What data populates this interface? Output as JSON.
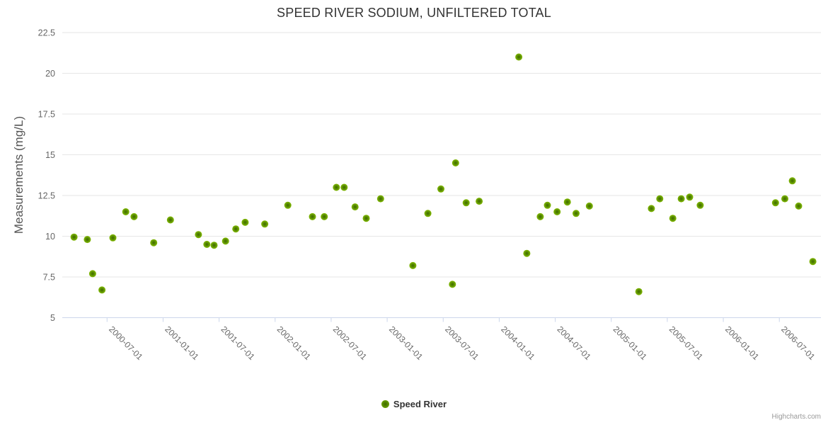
{
  "title": "SPEED RIVER SODIUM, UNFILTERED TOTAL",
  "credits_label": "Highcharts.com",
  "legend": {
    "series_label": "Speed River",
    "marker_icon": "green-dot-icon"
  },
  "colors": {
    "marker_outer": "#82ba00",
    "marker_mid": "#578a00",
    "marker_inner": "#3f6800",
    "grid": "#e6e6e6",
    "axis_line": "#ccd6eb",
    "tick_label": "#666666",
    "title_text": "#333333"
  },
  "chart_data": {
    "type": "scatter",
    "title": "SPEED RIVER SODIUM, UNFILTERED TOTAL",
    "xlabel": "",
    "ylabel": "Measurements (mg/L)",
    "ylim": [
      5,
      22.5
    ],
    "y_ticks": [
      "22.5",
      "20",
      "17.5",
      "15",
      "12.5",
      "10",
      "7.5",
      "5"
    ],
    "y_tick_values": [
      22.5,
      20,
      17.5,
      15,
      12.5,
      10,
      7.5,
      5
    ],
    "x_ticks": [
      "2000-07-01",
      "2001-01-01",
      "2001-07-01",
      "2002-01-01",
      "2002-07-01",
      "2003-01-01",
      "2003-07-01",
      "2004-01-01",
      "2004-07-01",
      "2005-01-01",
      "2005-07-01",
      "2006-01-01",
      "2006-07-01"
    ],
    "grid": true,
    "legend_position": "bottom",
    "series": [
      {
        "name": "Speed River",
        "points": [
          {
            "date": "2000-03-15",
            "value": 9.95
          },
          {
            "date": "2000-04-28",
            "value": 9.8
          },
          {
            "date": "2000-05-15",
            "value": 7.7
          },
          {
            "date": "2000-06-15",
            "value": 6.7
          },
          {
            "date": "2000-07-20",
            "value": 9.9
          },
          {
            "date": "2000-09-01",
            "value": 11.5
          },
          {
            "date": "2000-09-28",
            "value": 11.2
          },
          {
            "date": "2000-12-01",
            "value": 9.6
          },
          {
            "date": "2001-01-25",
            "value": 11.0
          },
          {
            "date": "2001-04-25",
            "value": 10.1
          },
          {
            "date": "2001-05-22",
            "value": 9.5
          },
          {
            "date": "2001-06-15",
            "value": 9.45
          },
          {
            "date": "2001-07-22",
            "value": 9.7
          },
          {
            "date": "2001-08-25",
            "value": 10.45
          },
          {
            "date": "2001-09-25",
            "value": 10.85
          },
          {
            "date": "2001-11-28",
            "value": 10.75
          },
          {
            "date": "2002-02-12",
            "value": 11.9
          },
          {
            "date": "2002-05-01",
            "value": 11.2
          },
          {
            "date": "2002-06-09",
            "value": 11.2
          },
          {
            "date": "2002-07-18",
            "value": 13.0
          },
          {
            "date": "2002-08-13",
            "value": 13.0
          },
          {
            "date": "2002-09-18",
            "value": 11.8
          },
          {
            "date": "2002-10-24",
            "value": 11.1
          },
          {
            "date": "2002-12-10",
            "value": 12.3
          },
          {
            "date": "2003-03-24",
            "value": 8.2
          },
          {
            "date": "2003-05-12",
            "value": 11.4
          },
          {
            "date": "2003-06-24",
            "value": 12.9
          },
          {
            "date": "2003-07-31",
            "value": 7.05
          },
          {
            "date": "2003-08-11",
            "value": 14.5
          },
          {
            "date": "2003-09-15",
            "value": 12.05
          },
          {
            "date": "2003-10-27",
            "value": 12.15
          },
          {
            "date": "2004-03-04",
            "value": 21.0
          },
          {
            "date": "2004-03-30",
            "value": 8.95
          },
          {
            "date": "2004-05-13",
            "value": 11.2
          },
          {
            "date": "2004-06-06",
            "value": 11.9
          },
          {
            "date": "2004-07-07",
            "value": 11.5
          },
          {
            "date": "2004-08-10",
            "value": 12.1
          },
          {
            "date": "2004-09-08",
            "value": 11.4
          },
          {
            "date": "2004-10-21",
            "value": 11.85
          },
          {
            "date": "2005-03-30",
            "value": 6.6
          },
          {
            "date": "2005-05-10",
            "value": 11.7
          },
          {
            "date": "2005-06-07",
            "value": 12.3
          },
          {
            "date": "2005-07-19",
            "value": 11.1
          },
          {
            "date": "2005-08-16",
            "value": 12.3
          },
          {
            "date": "2005-09-13",
            "value": 12.4
          },
          {
            "date": "2005-10-17",
            "value": 11.9
          },
          {
            "date": "2006-06-19",
            "value": 12.05
          },
          {
            "date": "2006-07-19",
            "value": 12.3
          },
          {
            "date": "2006-08-13",
            "value": 13.4
          },
          {
            "date": "2006-09-03",
            "value": 11.85
          },
          {
            "date": "2006-10-19",
            "value": 8.45
          }
        ]
      }
    ]
  }
}
